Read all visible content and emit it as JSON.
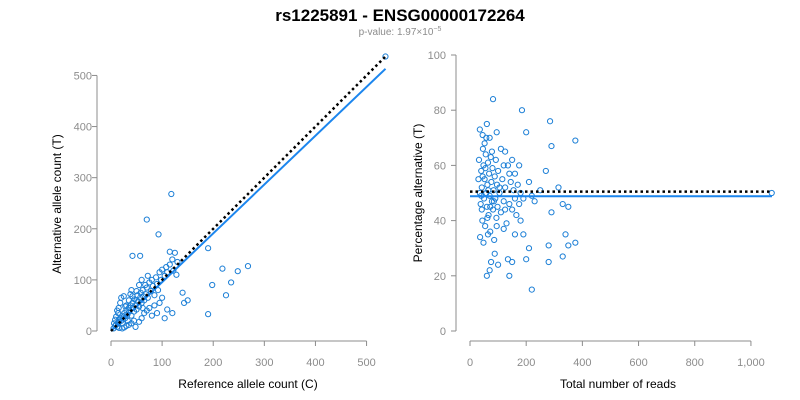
{
  "figure": {
    "title": "rs1225891 - ENSG00000172264",
    "subtitle_prefix": "p-value: 1.97×10",
    "subtitle_exponent": "−5"
  },
  "colors": {
    "point": "#1c7fd6",
    "fit_line": "#1c86ee",
    "reference_line": "#000000",
    "axis": "#8c8c8c"
  },
  "chart_data": [
    {
      "id": "left",
      "type": "scatter",
      "xlabel": "Reference allele count (C)",
      "ylabel": "Alternative allele count (T)",
      "xlim": [
        0,
        540
      ],
      "ylim": [
        0,
        540
      ],
      "xticks": [
        0,
        100,
        200,
        300,
        400,
        500
      ],
      "yticks": [
        0,
        100,
        200,
        300,
        400,
        500
      ],
      "xtick_labels": [
        "0",
        "100",
        "200",
        "300",
        "400",
        "500"
      ],
      "ytick_labels": [
        "0",
        "100",
        "200",
        "300",
        "400",
        "500"
      ],
      "fit_line": [
        [
          0,
          0
        ],
        [
          537,
          513
        ]
      ],
      "reference_line": [
        [
          0,
          0
        ],
        [
          537,
          537
        ]
      ],
      "points": [
        [
          537,
          537
        ],
        [
          118,
          268
        ],
        [
          70,
          218
        ],
        [
          93,
          189
        ],
        [
          42,
          147
        ],
        [
          57,
          147
        ],
        [
          115,
          155
        ],
        [
          125,
          153
        ],
        [
          190,
          162
        ],
        [
          268,
          127
        ],
        [
          248,
          117
        ],
        [
          218,
          122
        ],
        [
          235,
          95
        ],
        [
          198,
          90
        ],
        [
          140,
          75
        ],
        [
          150,
          60
        ],
        [
          143,
          55
        ],
        [
          225,
          70
        ],
        [
          190,
          33
        ],
        [
          110,
          42
        ],
        [
          120,
          35
        ],
        [
          105,
          25
        ],
        [
          5,
          5
        ],
        [
          8,
          10
        ],
        [
          10,
          12
        ],
        [
          12,
          8
        ],
        [
          14,
          15
        ],
        [
          15,
          22
        ],
        [
          16,
          18
        ],
        [
          18,
          25
        ],
        [
          20,
          20
        ],
        [
          22,
          30
        ],
        [
          23,
          15
        ],
        [
          25,
          28
        ],
        [
          26,
          35
        ],
        [
          28,
          25
        ],
        [
          30,
          40
        ],
        [
          32,
          32
        ],
        [
          33,
          20
        ],
        [
          35,
          45
        ],
        [
          36,
          38
        ],
        [
          38,
          50
        ],
        [
          40,
          30
        ],
        [
          42,
          55
        ],
        [
          43,
          45
        ],
        [
          45,
          38
        ],
        [
          46,
          62
        ],
        [
          48,
          50
        ],
        [
          50,
          42
        ],
        [
          52,
          70
        ],
        [
          53,
          58
        ],
        [
          55,
          48
        ],
        [
          57,
          65
        ],
        [
          58,
          75
        ],
        [
          60,
          55
        ],
        [
          62,
          80
        ],
        [
          63,
          68
        ],
        [
          65,
          60
        ],
        [
          67,
          90
        ],
        [
          68,
          72
        ],
        [
          70,
          85
        ],
        [
          72,
          65
        ],
        [
          75,
          95
        ],
        [
          78,
          78
        ],
        [
          80,
          100
        ],
        [
          82,
          88
        ],
        [
          85,
          70
        ],
        [
          88,
          105
        ],
        [
          90,
          92
        ],
        [
          92,
          80
        ],
        [
          95,
          115
        ],
        [
          98,
          100
        ],
        [
          100,
          120
        ],
        [
          105,
          108
        ],
        [
          108,
          125
        ],
        [
          110,
          115
        ],
        [
          115,
          130
        ],
        [
          120,
          140
        ],
        [
          122,
          118
        ],
        [
          128,
          110
        ],
        [
          130,
          135
        ],
        [
          12,
          40
        ],
        [
          18,
          55
        ],
        [
          20,
          65
        ],
        [
          25,
          68
        ],
        [
          28,
          48
        ],
        [
          30,
          10
        ],
        [
          35,
          12
        ],
        [
          40,
          15
        ],
        [
          45,
          20
        ],
        [
          48,
          8
        ],
        [
          55,
          18
        ],
        [
          60,
          25
        ],
        [
          65,
          35
        ],
        [
          70,
          40
        ],
        [
          75,
          45
        ],
        [
          80,
          30
        ],
        [
          85,
          50
        ],
        [
          90,
          35
        ],
        [
          95,
          55
        ],
        [
          100,
          65
        ],
        [
          22,
          5
        ],
        [
          26,
          7
        ],
        [
          10,
          28
        ],
        [
          14,
          35
        ],
        [
          8,
          22
        ],
        [
          6,
          15
        ],
        [
          16,
          6
        ],
        [
          35,
          60
        ],
        [
          38,
          72
        ],
        [
          42,
          68
        ],
        [
          50,
          78
        ],
        [
          55,
          90
        ],
        [
          60,
          100
        ],
        [
          72,
          108
        ],
        [
          15,
          45
        ],
        [
          50,
          60
        ],
        [
          30,
          50
        ],
        [
          62,
          45
        ],
        [
          40,
          80
        ]
      ]
    },
    {
      "id": "right",
      "type": "scatter",
      "xlabel": "Total number of reads",
      "ylabel": "Percentage alternative (T)",
      "xlim": [
        0,
        1075
      ],
      "ylim": [
        0,
        100
      ],
      "xticks": [
        0,
        200,
        400,
        600,
        800,
        1000
      ],
      "yticks": [
        0,
        20,
        40,
        60,
        80,
        100
      ],
      "xtick_labels": [
        "0",
        "200",
        "400",
        "600",
        "800",
        "1,000"
      ],
      "ytick_labels": [
        "0",
        "20",
        "40",
        "60",
        "80",
        "100"
      ],
      "fit_line": [
        [
          0,
          48.8
        ],
        [
          1075,
          48.8
        ]
      ],
      "reference_line": [
        [
          0,
          50.5
        ],
        [
          1075,
          50.5
        ]
      ],
      "points": [
        [
          1074,
          50
        ],
        [
          82,
          84
        ],
        [
          185,
          80
        ],
        [
          285,
          76
        ],
        [
          200,
          72
        ],
        [
          375,
          69
        ],
        [
          290,
          67
        ],
        [
          35,
          73
        ],
        [
          45,
          71
        ],
        [
          60,
          75
        ],
        [
          70,
          70
        ],
        [
          95,
          72
        ],
        [
          125,
          65
        ],
        [
          150,
          62
        ],
        [
          160,
          57
        ],
        [
          120,
          60
        ],
        [
          270,
          58
        ],
        [
          315,
          52
        ],
        [
          330,
          46
        ],
        [
          350,
          45
        ],
        [
          290,
          43
        ],
        [
          280,
          31
        ],
        [
          375,
          32
        ],
        [
          340,
          35
        ],
        [
          350,
          31
        ],
        [
          330,
          27
        ],
        [
          280,
          25
        ],
        [
          220,
          15
        ],
        [
          210,
          30
        ],
        [
          140,
          20
        ],
        [
          150,
          25
        ],
        [
          135,
          26
        ],
        [
          120,
          37
        ],
        [
          100,
          24
        ],
        [
          75,
          25
        ],
        [
          70,
          22
        ],
        [
          60,
          20
        ],
        [
          200,
          26
        ],
        [
          180,
          40
        ],
        [
          190,
          35
        ],
        [
          220,
          49
        ],
        [
          30,
          55
        ],
        [
          32,
          62
        ],
        [
          35,
          50
        ],
        [
          38,
          46
        ],
        [
          40,
          58
        ],
        [
          42,
          52
        ],
        [
          44,
          40
        ],
        [
          46,
          66
        ],
        [
          48,
          60
        ],
        [
          50,
          48
        ],
        [
          52,
          55
        ],
        [
          54,
          38
        ],
        [
          56,
          64
        ],
        [
          58,
          50
        ],
        [
          60,
          45
        ],
        [
          62,
          53
        ],
        [
          64,
          61
        ],
        [
          66,
          42
        ],
        [
          68,
          57
        ],
        [
          70,
          49
        ],
        [
          72,
          36
        ],
        [
          74,
          63
        ],
        [
          76,
          54
        ],
        [
          78,
          47
        ],
        [
          80,
          59
        ],
        [
          82,
          44
        ],
        [
          84,
          51
        ],
        [
          86,
          33
        ],
        [
          88,
          56
        ],
        [
          90,
          48
        ],
        [
          92,
          62
        ],
        [
          94,
          41
        ],
        [
          96,
          53
        ],
        [
          98,
          45
        ],
        [
          100,
          58
        ],
        [
          105,
          50
        ],
        [
          110,
          43
        ],
        [
          115,
          55
        ],
        [
          120,
          47
        ],
        [
          125,
          52
        ],
        [
          130,
          39
        ],
        [
          135,
          60
        ],
        [
          140,
          46
        ],
        [
          145,
          54
        ],
        [
          150,
          44
        ],
        [
          155,
          51
        ],
        [
          160,
          48
        ],
        [
          165,
          42
        ],
        [
          170,
          53
        ],
        [
          175,
          46
        ],
        [
          180,
          50
        ],
        [
          190,
          48
        ],
        [
          36,
          34
        ],
        [
          48,
          32
        ],
        [
          52,
          68
        ],
        [
          58,
          70
        ],
        [
          64,
          35
        ],
        [
          88,
          28
        ],
        [
          110,
          66
        ],
        [
          42,
          44
        ],
        [
          55,
          59
        ],
        [
          62,
          41
        ],
        [
          78,
          65
        ],
        [
          95,
          38
        ],
        [
          105,
          52
        ],
        [
          125,
          44
        ],
        [
          140,
          57
        ],
        [
          160,
          35
        ],
        [
          175,
          60
        ],
        [
          210,
          54
        ],
        [
          230,
          47
        ],
        [
          250,
          51
        ],
        [
          40,
          49
        ],
        [
          65,
          51
        ],
        [
          85,
          47
        ],
        [
          45,
          56
        ],
        [
          72,
          45
        ]
      ]
    }
  ]
}
